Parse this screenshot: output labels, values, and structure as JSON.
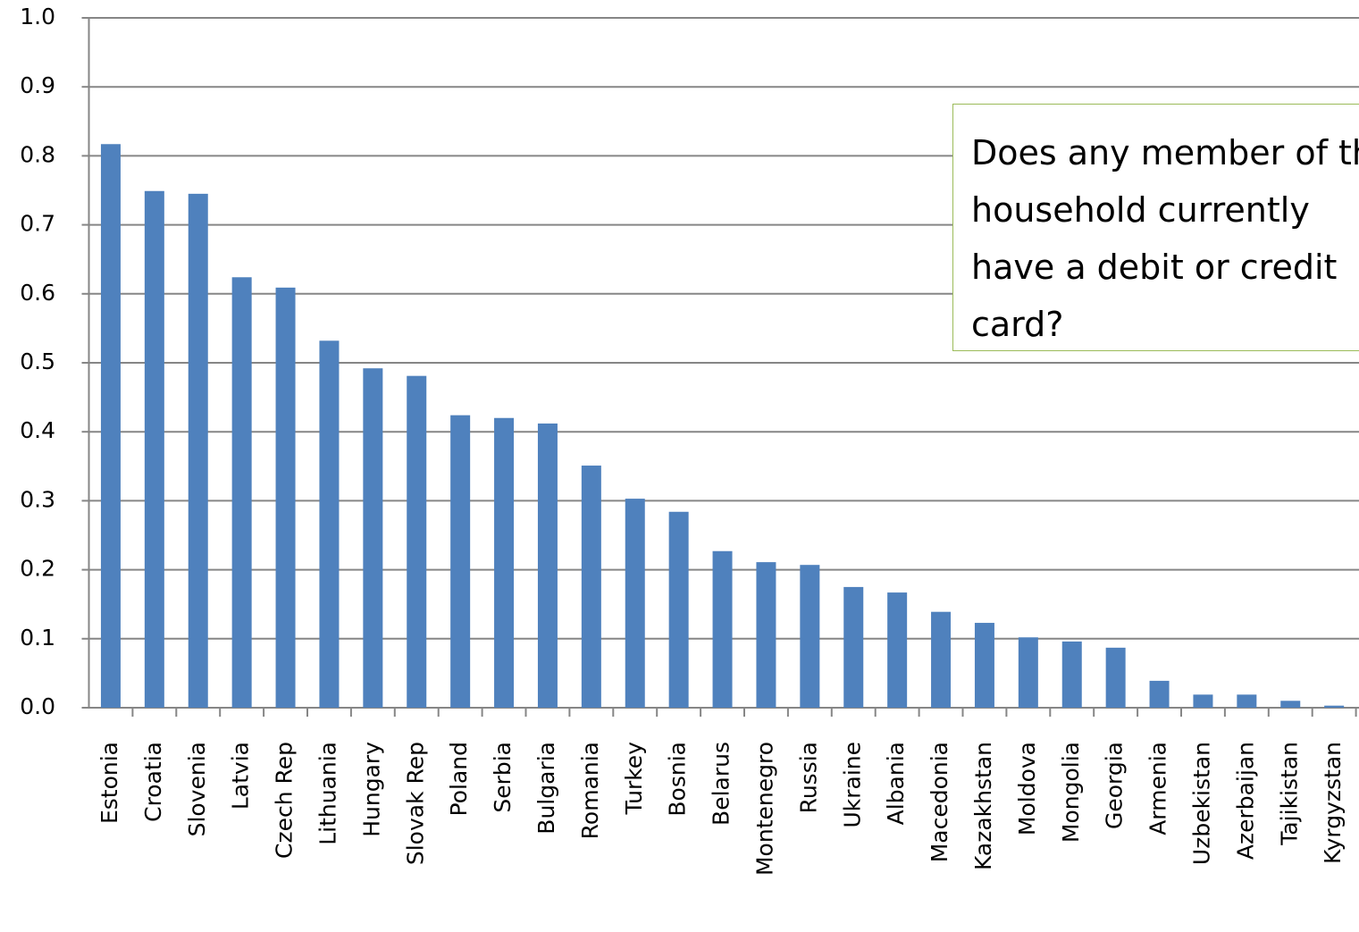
{
  "chart_data": {
    "type": "bar",
    "annotation": "Does any member of the household currently have a debit or credit card?",
    "categories": [
      "Estonia",
      "Croatia",
      "Slovenia",
      "Latvia",
      "Czech Rep",
      "Lithuania",
      "Hungary",
      "Slovak Rep",
      "Poland",
      "Serbia",
      "Bulgaria",
      "Romania",
      "Turkey",
      "Bosnia",
      "Belarus",
      "Montenegro",
      "Russia",
      "Ukraine",
      "Albania",
      "Macedonia",
      "Kazakhstan",
      "Moldova",
      "Mongolia",
      "Georgia",
      "Armenia",
      "Uzbekistan",
      "Azerbaijan",
      "Tajikistan",
      "Kyrgyzstan"
    ],
    "values": [
      0.817,
      0.749,
      0.745,
      0.624,
      0.609,
      0.532,
      0.492,
      0.481,
      0.424,
      0.42,
      0.412,
      0.351,
      0.303,
      0.284,
      0.227,
      0.211,
      0.207,
      0.175,
      0.167,
      0.139,
      0.123,
      0.102,
      0.096,
      0.087,
      0.039,
      0.019,
      0.019,
      0.01,
      0.003
    ],
    "color": "#4f81bd",
    "ylim": [
      0,
      1
    ],
    "yticks": [
      {
        "value": 0,
        "label": "0.0"
      },
      0.1,
      0.2,
      0.3,
      0.4,
      0.5,
      0.6,
      0.7,
      0.8,
      0.9,
      {
        "value": 1,
        "label": "1.0"
      }
    ],
    "grid": true
  }
}
